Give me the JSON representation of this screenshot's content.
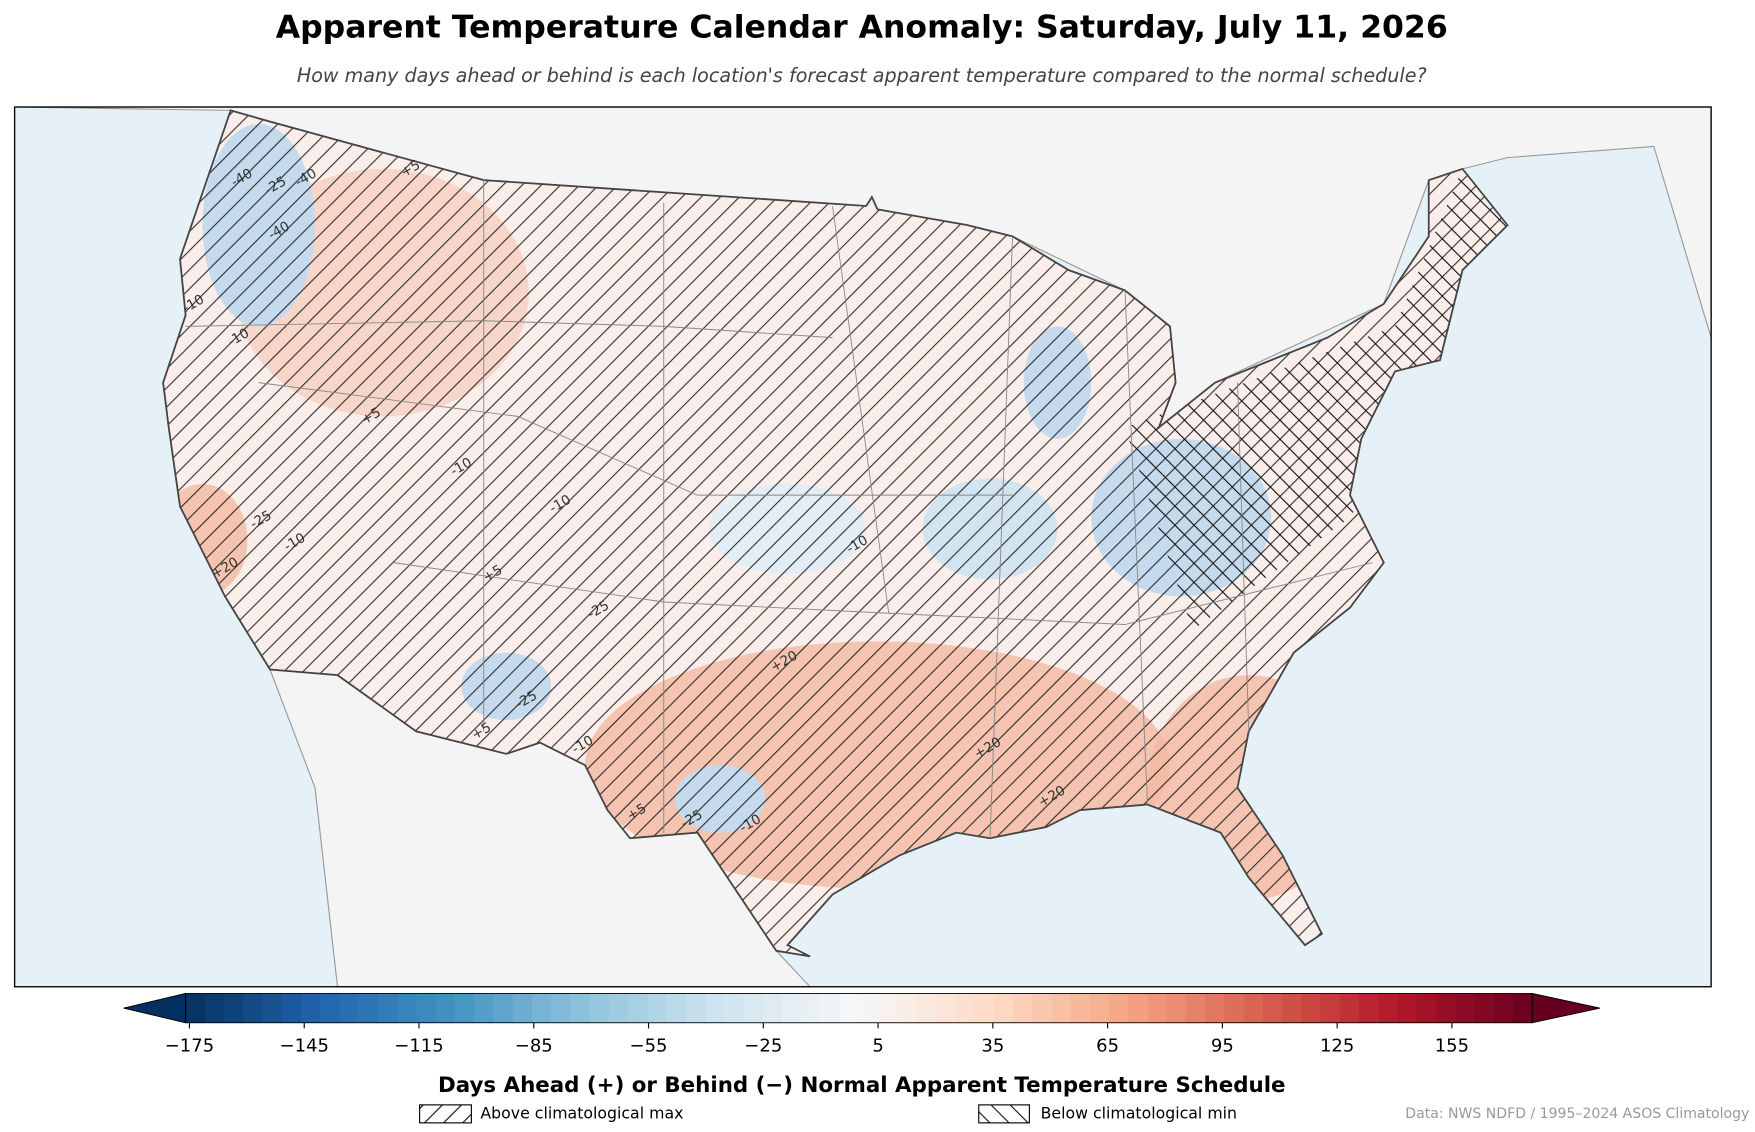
{
  "title": "Apparent Temperature Calendar Anomaly: Saturday, July 11, 2026",
  "subtitle": "How many days ahead or behind is each location's forecast apparent temperature compared to the normal schedule?",
  "colorbar": {
    "label": "Days Ahead (+) or Behind (−) Normal Apparent Temperature Schedule",
    "clim": [
      -176,
      176
    ],
    "colormap": [
      "#053061",
      "#2166ac",
      "#4393c3",
      "#92c5de",
      "#d1e5f0",
      "#f7f7f7",
      "#fddbc7",
      "#f4a582",
      "#d6604d",
      "#b2182b",
      "#67001f"
    ],
    "ticks": [
      {
        "value": -175,
        "label": "−175"
      },
      {
        "value": -145,
        "label": "−145"
      },
      {
        "value": -115,
        "label": "−115"
      },
      {
        "value": -85,
        "label": "−85"
      },
      {
        "value": -55,
        "label": "−55"
      },
      {
        "value": -25,
        "label": "−25"
      },
      5,
      35,
      65,
      95,
      125,
      155
    ]
  },
  "legend": [
    "Above climatological max",
    "Below climatological min"
  ],
  "source": "Data: NWS NDFD / 1995–2024 ASOS Climatology",
  "contour_labels": [
    "-40",
    "-25",
    "-40",
    "-40",
    "-10",
    "-10",
    "+5",
    "+5",
    "-25",
    "-10",
    "-10",
    "+5",
    "+20",
    "-10",
    "-25",
    "-10",
    "+5",
    "-25",
    "+20",
    "+20",
    "-10",
    "-25",
    "-10",
    "+20",
    "+5"
  ]
}
